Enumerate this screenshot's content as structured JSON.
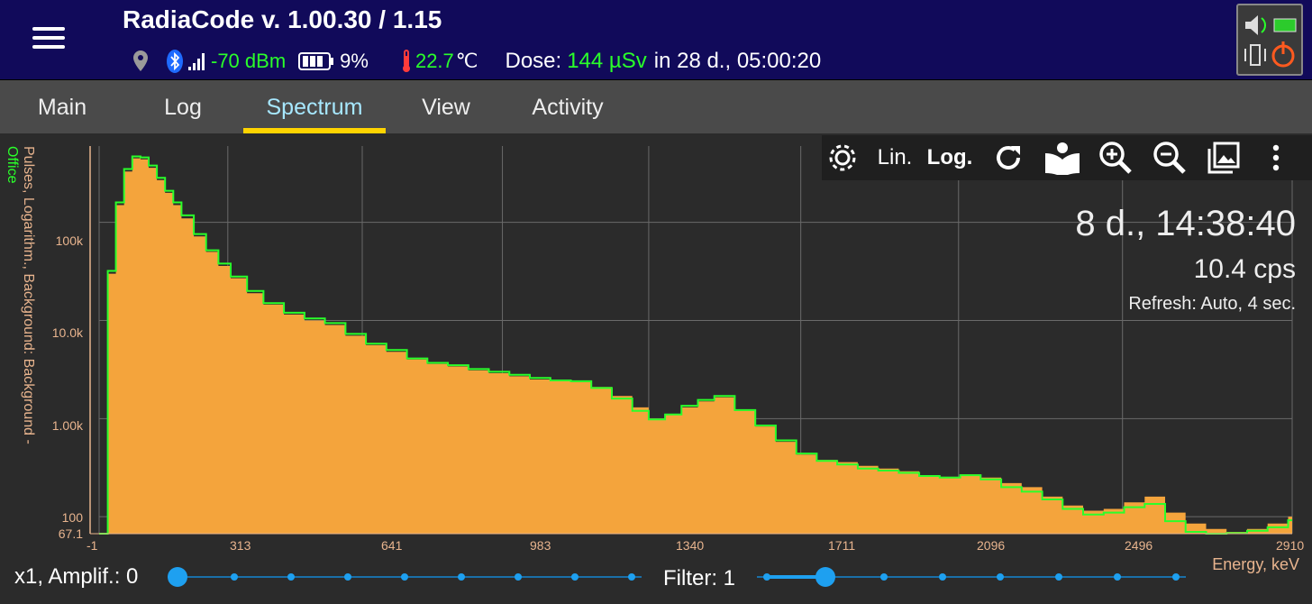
{
  "header": {
    "title": "RadiaCode v. 1.00.30 / 1.15",
    "signal": "-70 dBm",
    "battery": "9%",
    "temperature": "22.7",
    "temp_unit": "℃",
    "dose_label": "Dose:",
    "dose_value": "144 µSv",
    "dose_period": "in 28 d., 05:00:20"
  },
  "tabs": [
    {
      "label": "Main",
      "active": false
    },
    {
      "label": "Log",
      "active": false
    },
    {
      "label": "Spectrum",
      "active": true
    },
    {
      "label": "View",
      "active": false
    },
    {
      "label": "Activity",
      "active": false
    }
  ],
  "toolbar": {
    "lin_label": "Lin.",
    "log_label": "Log.",
    "scale_selected": "Log."
  },
  "overlay": {
    "elapsed": "8 d., 14:38:40",
    "cps": "10.4 cps",
    "refresh": "Refresh: Auto, 4 sec."
  },
  "axes": {
    "y_title_primary": "Pulses, Logarithm., Background: Background - ",
    "y_title_secondary": "Office",
    "y_ticks": [
      "67.1",
      "100",
      "1.00k",
      "10.0k",
      "100k"
    ],
    "x_ticks": [
      "-1",
      "313",
      "641",
      "983",
      "1340",
      "1711",
      "2096",
      "2496",
      "2910"
    ],
    "x_title": "Energy, keV"
  },
  "controls": {
    "amplif_label": "x1, Amplif.: 0",
    "amplif_value": 0,
    "amplif_steps": 9,
    "filter_label": "Filter: 1",
    "filter_value": 1,
    "filter_steps": 8
  },
  "colors": {
    "header_bg": "#110a5a",
    "spectrum_fill": "#f4a43c",
    "background_line": "#2aff2a",
    "tab_indicator": "#ffd400",
    "axis_text": "#e8b48e"
  },
  "chart_data": {
    "type": "area",
    "title": "",
    "xlabel": "Energy, keV",
    "ylabel": "Pulses, Logarithm.",
    "y_scale": "log",
    "xlim": [
      -1,
      2910
    ],
    "ylim": [
      67.1,
      600000
    ],
    "grid": true,
    "series": [
      {
        "name": "Pulses",
        "style": "filled",
        "x": [
          -1,
          20,
          40,
          60,
          80,
          100,
          120,
          140,
          160,
          180,
          200,
          230,
          260,
          290,
          320,
          360,
          400,
          450,
          500,
          550,
          600,
          650,
          700,
          750,
          800,
          850,
          900,
          950,
          1000,
          1050,
          1100,
          1150,
          1200,
          1250,
          1300,
          1340,
          1380,
          1420,
          1460,
          1500,
          1550,
          1600,
          1650,
          1700,
          1750,
          1800,
          1850,
          1900,
          1950,
          2000,
          2050,
          2100,
          2150,
          2200,
          2250,
          2300,
          2350,
          2400,
          2450,
          2500,
          2550,
          2600,
          2650,
          2700,
          2750,
          2800,
          2850,
          2900
        ],
        "y": [
          67.1,
          30000,
          150000,
          330000,
          450000,
          440000,
          360000,
          270000,
          200000,
          150000,
          110000,
          72000,
          50000,
          36000,
          27000,
          19000,
          14500,
          11500,
          10000,
          9000,
          7000,
          5600,
          4800,
          4000,
          3600,
          3400,
          3100,
          2900,
          2700,
          2500,
          2400,
          2350,
          2100,
          1700,
          1300,
          1000,
          1100,
          1300,
          1500,
          1650,
          1200,
          830,
          580,
          430,
          380,
          360,
          330,
          310,
          290,
          265,
          255,
          270,
          250,
          220,
          200,
          160,
          130,
          115,
          120,
          140,
          160,
          110,
          85,
          75,
          70,
          75,
          85,
          100
        ]
      },
      {
        "name": "Background - Office",
        "style": "line",
        "x": [
          -1,
          20,
          40,
          60,
          80,
          100,
          120,
          140,
          160,
          180,
          200,
          230,
          260,
          290,
          320,
          360,
          400,
          450,
          500,
          550,
          600,
          650,
          700,
          750,
          800,
          850,
          900,
          950,
          1000,
          1050,
          1100,
          1150,
          1200,
          1250,
          1300,
          1340,
          1380,
          1420,
          1460,
          1500,
          1550,
          1600,
          1650,
          1700,
          1750,
          1800,
          1850,
          1900,
          1950,
          2000,
          2050,
          2100,
          2150,
          2200,
          2250,
          2300,
          2350,
          2400,
          2450,
          2500,
          2550,
          2600,
          2650,
          2700,
          2750,
          2800,
          2850,
          2900
        ],
        "y": [
          67.1,
          32000,
          160000,
          350000,
          470000,
          460000,
          380000,
          285000,
          210000,
          160000,
          118000,
          76000,
          52000,
          38000,
          28000,
          20000,
          15000,
          12000,
          10500,
          9400,
          7300,
          5800,
          5000,
          4100,
          3700,
          3500,
          3200,
          3000,
          2800,
          2600,
          2450,
          2400,
          2050,
          1600,
          1200,
          980,
          1100,
          1350,
          1550,
          1700,
          1220,
          850,
          600,
          440,
          370,
          340,
          310,
          295,
          280,
          260,
          250,
          265,
          240,
          200,
          180,
          150,
          120,
          105,
          110,
          125,
          135,
          90,
          70,
          65,
          68,
          72,
          78,
          92
        ]
      }
    ]
  }
}
